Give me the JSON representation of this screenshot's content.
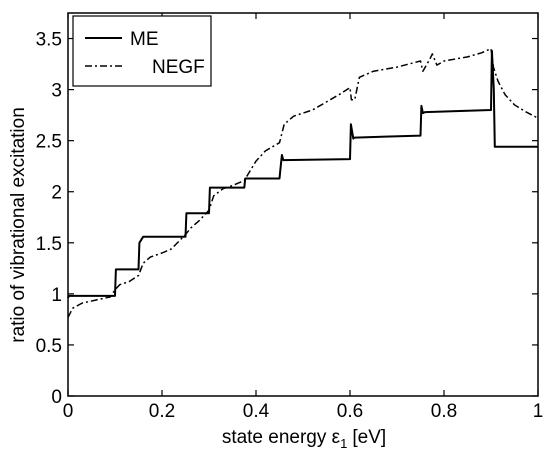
{
  "chart_data": {
    "type": "line",
    "xlabel": "state energy ε1 [eV]",
    "xlabel_main": "state energy ε",
    "xlabel_sub": "1",
    "xlabel_unit": "[eV]",
    "ylabel": "ratio of vibrational excitation",
    "xlim": [
      0,
      1
    ],
    "ylim": [
      0,
      3.75
    ],
    "x_ticks": [
      0,
      0.2,
      0.4,
      0.6,
      0.8,
      1
    ],
    "x_tick_labels": [
      "0",
      "0.2",
      "0.4",
      "0.6",
      "0.8",
      "1"
    ],
    "y_ticks": [
      0,
      0.5,
      1,
      1.5,
      2,
      2.5,
      3,
      3.5
    ],
    "y_tick_labels": [
      "0",
      "0.5",
      "1",
      "1.5",
      "2",
      "2.5",
      "3",
      "3.5"
    ],
    "grid": false,
    "legend_position": "top-left",
    "series": [
      {
        "name": "ME",
        "style": "solid",
        "color": "#000000",
        "points": [
          [
            0,
            0.96
          ],
          [
            0.002,
            0.98
          ],
          [
            0.1,
            0.98
          ],
          [
            0.102,
            1.24
          ],
          [
            0.15,
            1.24
          ],
          [
            0.152,
            1.5
          ],
          [
            0.16,
            1.56
          ],
          [
            0.25,
            1.56
          ],
          [
            0.252,
            1.79
          ],
          [
            0.3,
            1.79
          ],
          [
            0.302,
            2.04
          ],
          [
            0.375,
            2.04
          ],
          [
            0.377,
            2.13
          ],
          [
            0.4,
            2.13
          ],
          [
            0.402,
            2.13
          ],
          [
            0.45,
            2.13
          ],
          [
            0.452,
            2.22
          ],
          [
            0.455,
            2.36
          ],
          [
            0.458,
            2.31
          ],
          [
            0.6,
            2.32
          ],
          [
            0.602,
            2.66
          ],
          [
            0.607,
            2.52
          ],
          [
            0.61,
            2.53
          ],
          [
            0.75,
            2.55
          ],
          [
            0.752,
            2.84
          ],
          [
            0.755,
            2.77
          ],
          [
            0.76,
            2.78
          ],
          [
            0.9,
            2.8
          ],
          [
            0.902,
            3.38
          ],
          [
            0.906,
            3.0
          ],
          [
            0.908,
            2.44
          ],
          [
            1.0,
            2.44
          ]
        ]
      },
      {
        "name": "NEGF",
        "style": "dashdot",
        "color": "#000000",
        "points": [
          [
            0,
            0.77
          ],
          [
            0.01,
            0.86
          ],
          [
            0.03,
            0.91
          ],
          [
            0.06,
            0.94
          ],
          [
            0.09,
            0.97
          ],
          [
            0.1,
            1.04
          ],
          [
            0.11,
            1.09
          ],
          [
            0.13,
            1.12
          ],
          [
            0.15,
            1.18
          ],
          [
            0.16,
            1.3
          ],
          [
            0.175,
            1.36
          ],
          [
            0.2,
            1.4
          ],
          [
            0.22,
            1.44
          ],
          [
            0.25,
            1.58
          ],
          [
            0.26,
            1.64
          ],
          [
            0.28,
            1.72
          ],
          [
            0.3,
            1.82
          ],
          [
            0.31,
            1.96
          ],
          [
            0.33,
            2.03
          ],
          [
            0.35,
            2.06
          ],
          [
            0.375,
            2.11
          ],
          [
            0.4,
            2.3
          ],
          [
            0.42,
            2.4
          ],
          [
            0.45,
            2.48
          ],
          [
            0.46,
            2.66
          ],
          [
            0.48,
            2.74
          ],
          [
            0.52,
            2.8
          ],
          [
            0.55,
            2.88
          ],
          [
            0.58,
            2.96
          ],
          [
            0.6,
            3.02
          ],
          [
            0.603,
            2.9
          ],
          [
            0.61,
            2.9
          ],
          [
            0.62,
            3.12
          ],
          [
            0.65,
            3.18
          ],
          [
            0.7,
            3.22
          ],
          [
            0.75,
            3.28
          ],
          [
            0.755,
            3.18
          ],
          [
            0.77,
            3.3
          ],
          [
            0.775,
            3.35
          ],
          [
            0.785,
            3.24
          ],
          [
            0.8,
            3.28
          ],
          [
            0.85,
            3.32
          ],
          [
            0.88,
            3.36
          ],
          [
            0.9,
            3.4
          ],
          [
            0.905,
            3.22
          ],
          [
            0.915,
            3.08
          ],
          [
            0.93,
            2.95
          ],
          [
            0.95,
            2.85
          ],
          [
            0.975,
            2.78
          ],
          [
            1.0,
            2.72
          ]
        ]
      }
    ]
  }
}
